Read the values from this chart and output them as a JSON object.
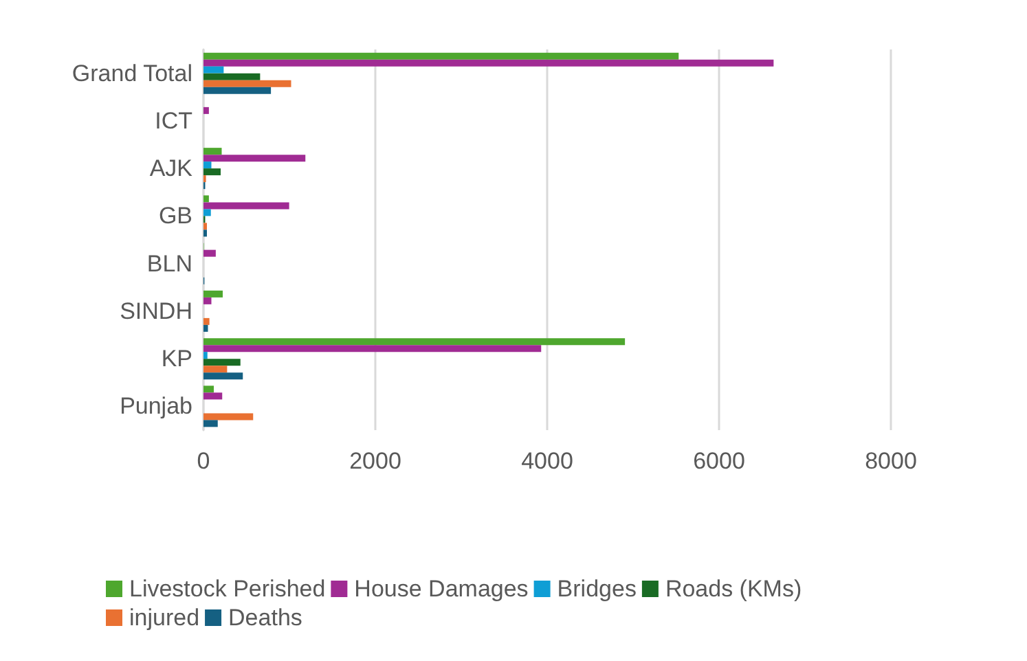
{
  "chart_data": {
    "type": "bar",
    "orientation": "horizontal",
    "categories": [
      "Grand Total",
      "ICT",
      "AJK",
      "GB",
      "BLN",
      "SINDH",
      "KP",
      "Punjab"
    ],
    "series": [
      {
        "name": "Livestock Perished",
        "color": "#4ea72e",
        "values": [
          5530,
          null,
          212,
          63,
          4,
          224,
          4905,
          120
        ]
      },
      {
        "name": "House Damages",
        "color": "#a02b93",
        "values": [
          6635,
          63,
          1186,
          997,
          143,
          92,
          3930,
          218
        ]
      },
      {
        "name": "Bridges",
        "color": "#0f9ed5",
        "values": [
          235,
          null,
          92,
          86,
          null,
          null,
          46,
          null
        ]
      },
      {
        "name": "Roads (KMs)",
        "color": "#196b24",
        "values": [
          659,
          null,
          200,
          20,
          null,
          null,
          430,
          null
        ]
      },
      {
        "name": "injured",
        "color": "#e97132",
        "values": [
          1020,
          null,
          29,
          40,
          null,
          69,
          275,
          578
        ]
      },
      {
        "name": "Deaths",
        "color": "#156082",
        "values": [
          785,
          null,
          20,
          40,
          10,
          52,
          458,
          166
        ]
      }
    ],
    "xlim": [
      0,
      8000
    ],
    "xticks": [
      0,
      2000,
      4000,
      6000,
      8000
    ],
    "grid": "x",
    "legend": "bottom"
  }
}
